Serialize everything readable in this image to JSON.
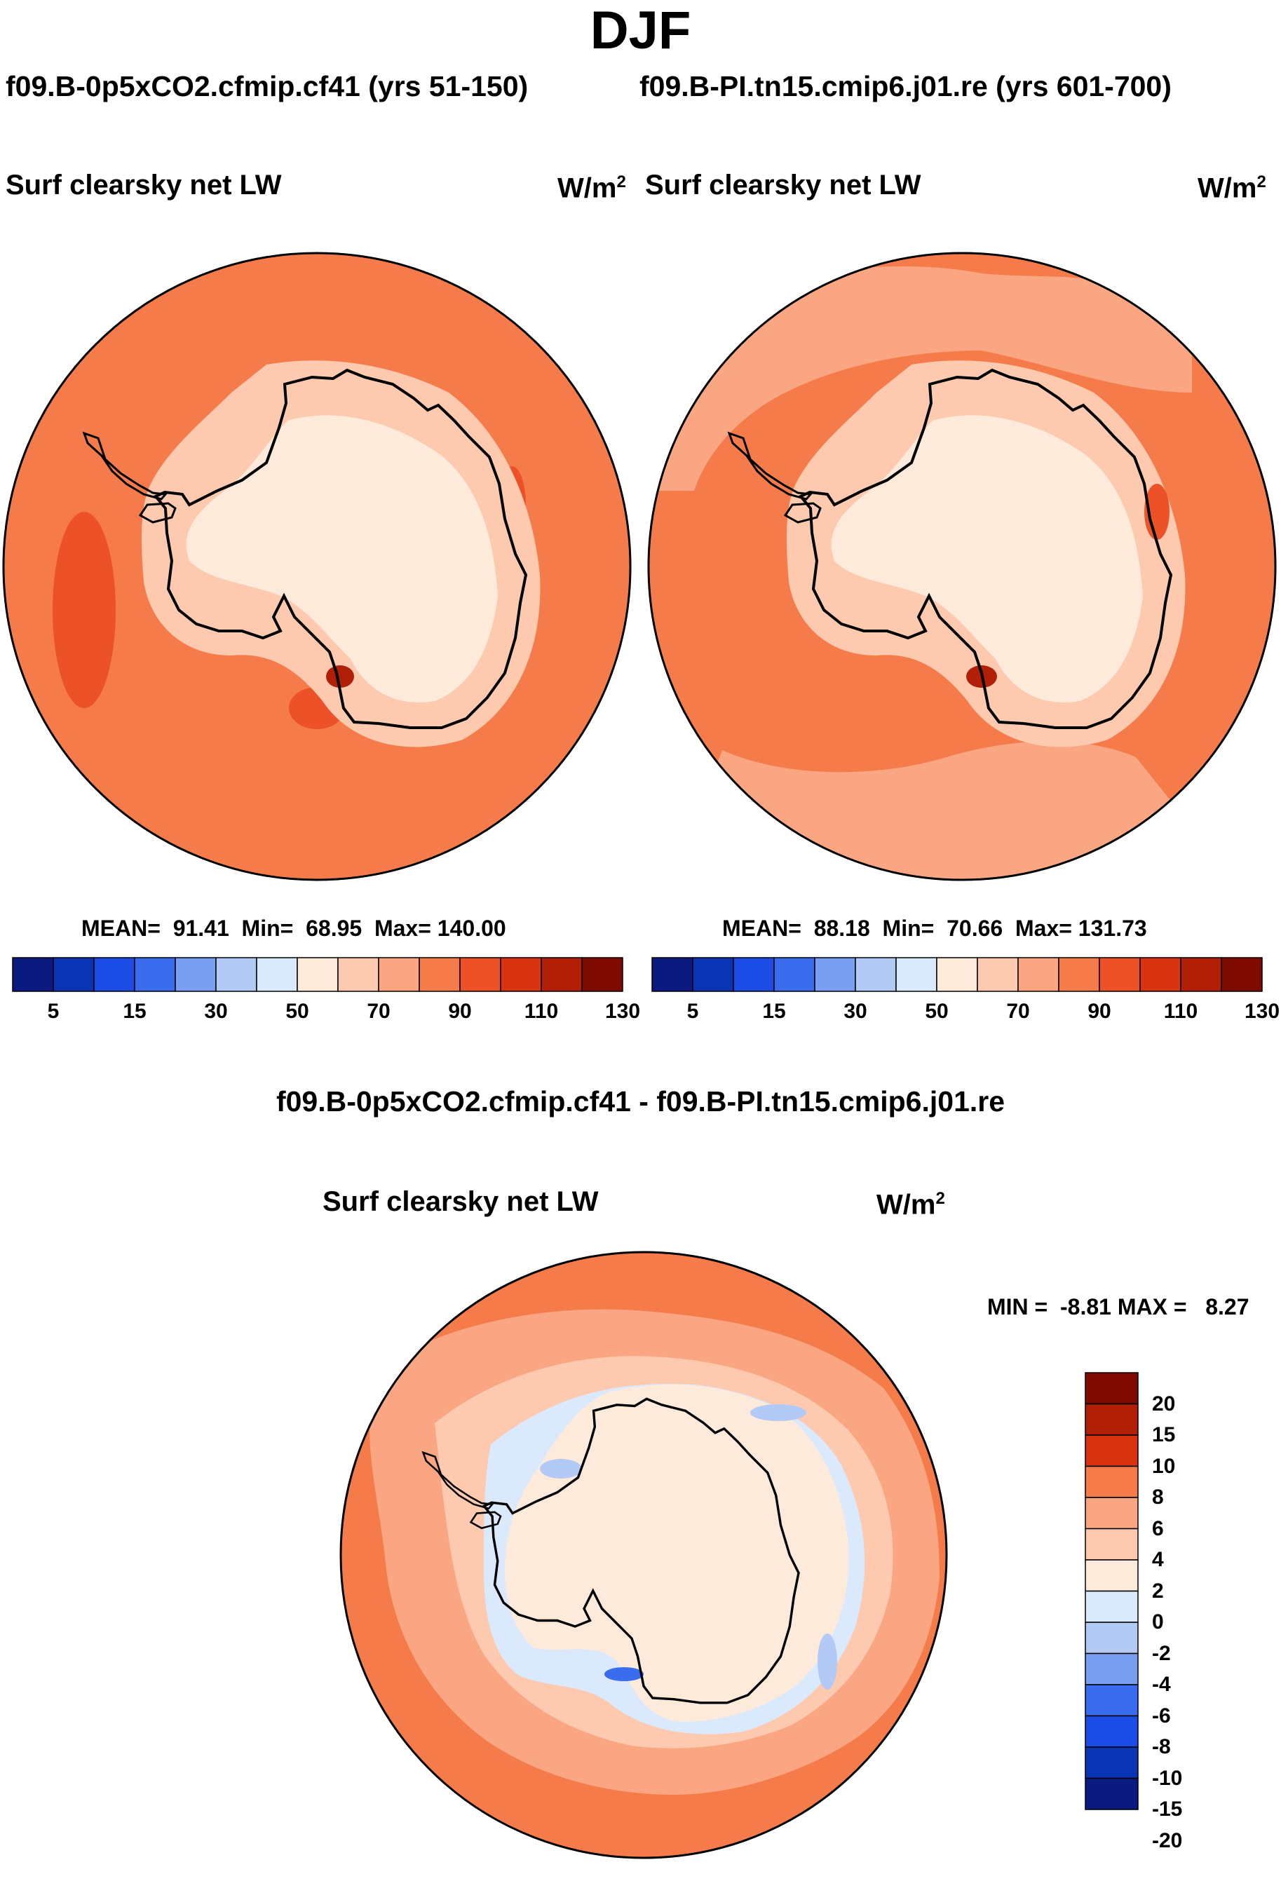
{
  "title": "DJF",
  "panels": [
    {
      "run": "f09.B-0p5xCO2.cfmip.cf41 (yrs 51-150)",
      "variable": "Surf clearsky net LW",
      "units": "W/m",
      "units_exp": "2",
      "stats": {
        "mean_label": "MEAN=",
        "mean": "91.41",
        "min_label": "Min=",
        "min": "68.95",
        "max_label": "Max=",
        "max": "140.00"
      }
    },
    {
      "run": "f09.B-PI.tn15.cmip6.j01.re (yrs 601-700)",
      "variable": "Surf clearsky net LW",
      "units": "W/m",
      "units_exp": "2",
      "stats": {
        "mean_label": "MEAN=",
        "mean": "88.18",
        "min_label": "Min=",
        "min": "70.66",
        "max_label": "Max=",
        "max": "131.73"
      }
    }
  ],
  "abs_colorbar": {
    "colors": [
      "#0a1a80",
      "#0a34b4",
      "#1b4de6",
      "#3a6cf0",
      "#7a9ef2",
      "#b3c9f6",
      "#dae9fb",
      "#feeadb",
      "#fdcaaf",
      "#fba682",
      "#f57c4a",
      "#ec5127",
      "#d93312",
      "#b01f06",
      "#7f0a00"
    ],
    "ticks": [
      "5",
      "15",
      "30",
      "50",
      "70",
      "90",
      "110",
      "130"
    ]
  },
  "difference": {
    "title": "f09.B-0p5xCO2.cfmip.cf41 - f09.B-PI.tn15.cmip6.j01.re",
    "variable": "Surf clearsky net LW",
    "units": "W/m",
    "units_exp": "2",
    "min_label": "MIN =",
    "min": "-8.81",
    "max_label": "MAX =",
    "max": "8.27"
  },
  "diff_colorbar": {
    "colors": [
      "#7f0a00",
      "#b01f06",
      "#d93312",
      "#f57c4a",
      "#fba682",
      "#fdcaaf",
      "#feeadb",
      "#dae9fb",
      "#b3c9f6",
      "#7a9ef2",
      "#3a6cf0",
      "#1b4de6",
      "#0a34b4",
      "#0a1a80"
    ],
    "ticks": [
      "20",
      "15",
      "10",
      "8",
      "6",
      "4",
      "2",
      "0",
      "-2",
      "-4",
      "-6",
      "-8",
      "-10",
      "-15",
      "-20"
    ]
  },
  "map_colors": {
    "ocean_abs": "#f57c4a",
    "ocean_abs_light": "#fba682",
    "ice_abs": "#fdcaaf",
    "interior_abs": "#feeadb",
    "high_abs": "#ec5127",
    "peak_abs": "#b01f06",
    "ocean_diff": "#fba682",
    "ocean_diff_light": "#fdcaaf",
    "land_diff": "#feeadb",
    "neg_diff": "#dae9fb",
    "neg2_diff": "#b3c9f6",
    "neg3_diff": "#3a6cf0",
    "coast": "#000000"
  }
}
